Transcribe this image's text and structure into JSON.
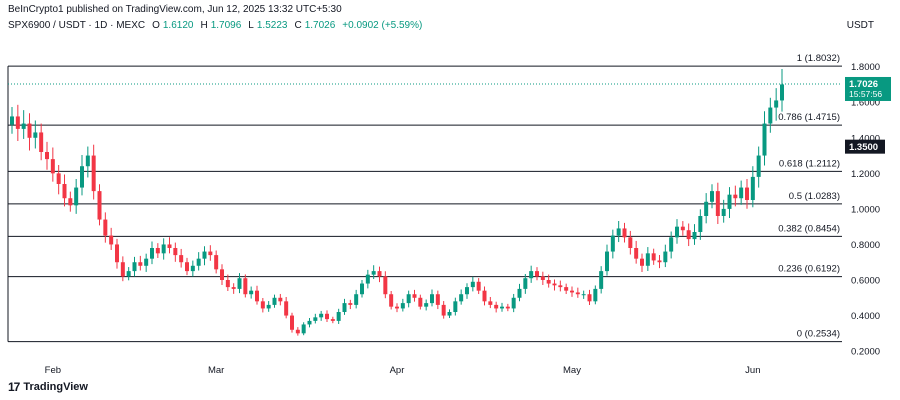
{
  "publisher_line": "BeInCrypto1 published on TradingView.com, Jun 12, 2025 13:32 UTC+5:30",
  "symbol_line": "SPX6900 / USDT · 1D · MEXC",
  "ohlc": {
    "open_label": "O",
    "open": "1.6120",
    "high_label": "H",
    "high": "1.7096",
    "low_label": "L",
    "low": "1.5223",
    "close_label": "C",
    "close": "1.7026",
    "change": "+0.0902 (+5.59%)"
  },
  "axis_unit": "USDT",
  "brand": "TradingView",
  "colors": {
    "up": "#089981",
    "down": "#f23645",
    "fib_line": "#131722",
    "last_price_line": "#089981"
  },
  "chart_data": {
    "type": "candlestick",
    "y_ticks": [
      0.2,
      0.4,
      0.6,
      0.8,
      1.0,
      1.2,
      1.4,
      1.6,
      1.8
    ],
    "y_tick_labels": [
      "0.2000",
      "0.4000",
      "0.6000",
      "0.8000",
      "1.0000",
      "1.2000",
      "1.4000",
      "1.6000",
      "1.8000"
    ],
    "ylim": [
      0.15,
      1.95
    ],
    "x_labels": [
      {
        "label": "Feb",
        "index": 7
      },
      {
        "label": "Mar",
        "index": 35
      },
      {
        "label": "Apr",
        "index": 66
      },
      {
        "label": "May",
        "index": 96
      },
      {
        "label": "Jun",
        "index": 127
      }
    ],
    "fib_levels": [
      {
        "ratio": "1",
        "value": 1.8032,
        "label": "1 (1.8032)"
      },
      {
        "ratio": "0.786",
        "value": 1.4715,
        "label": "0.786 (1.4715)"
      },
      {
        "ratio": "0.618",
        "value": 1.2112,
        "label": "0.618 (1.2112)"
      },
      {
        "ratio": "0.5",
        "value": 1.0283,
        "label": "0.5 (1.0283)"
      },
      {
        "ratio": "0.382",
        "value": 0.8454,
        "label": "0.382 (0.8454)"
      },
      {
        "ratio": "0.236",
        "value": 0.6192,
        "label": "0.236 (0.6192)"
      },
      {
        "ratio": "0",
        "value": 0.2534,
        "label": "0 (0.2534)"
      }
    ],
    "highlight_level": {
      "value": 1.35,
      "label": "1.3500"
    },
    "last_price": {
      "value": 1.7026,
      "label": "1.7026",
      "countdown": "15:57:56"
    },
    "closes": [
      1.52,
      1.45,
      1.48,
      1.4,
      1.43,
      1.32,
      1.28,
      1.2,
      1.14,
      1.06,
      1.02,
      1.12,
      1.24,
      1.3,
      1.1,
      0.94,
      0.85,
      0.8,
      0.7,
      0.62,
      0.65,
      0.7,
      0.68,
      0.72,
      0.78,
      0.75,
      0.8,
      0.78,
      0.74,
      0.7,
      0.65,
      0.68,
      0.72,
      0.76,
      0.74,
      0.66,
      0.6,
      0.56,
      0.55,
      0.61,
      0.52,
      0.54,
      0.48,
      0.44,
      0.46,
      0.5,
      0.48,
      0.4,
      0.32,
      0.3,
      0.35,
      0.37,
      0.39,
      0.41,
      0.38,
      0.37,
      0.42,
      0.47,
      0.46,
      0.52,
      0.58,
      0.63,
      0.65,
      0.62,
      0.52,
      0.45,
      0.44,
      0.47,
      0.52,
      0.5,
      0.45,
      0.47,
      0.52,
      0.46,
      0.4,
      0.42,
      0.48,
      0.52,
      0.56,
      0.59,
      0.54,
      0.48,
      0.46,
      0.44,
      0.45,
      0.44,
      0.5,
      0.55,
      0.61,
      0.65,
      0.62,
      0.6,
      0.58,
      0.57,
      0.56,
      0.54,
      0.53,
      0.52,
      0.52,
      0.48,
      0.55,
      0.65,
      0.76,
      0.85,
      0.89,
      0.84,
      0.78,
      0.72,
      0.68,
      0.75,
      0.71,
      0.7,
      0.76,
      0.84,
      0.9,
      0.88,
      0.83,
      0.87,
      0.96,
      1.04,
      1.1,
      0.96,
      1.0,
      1.08,
      1.06,
      1.12,
      1.05,
      1.18,
      1.3,
      1.48,
      1.57,
      1.61,
      1.7
    ]
  }
}
